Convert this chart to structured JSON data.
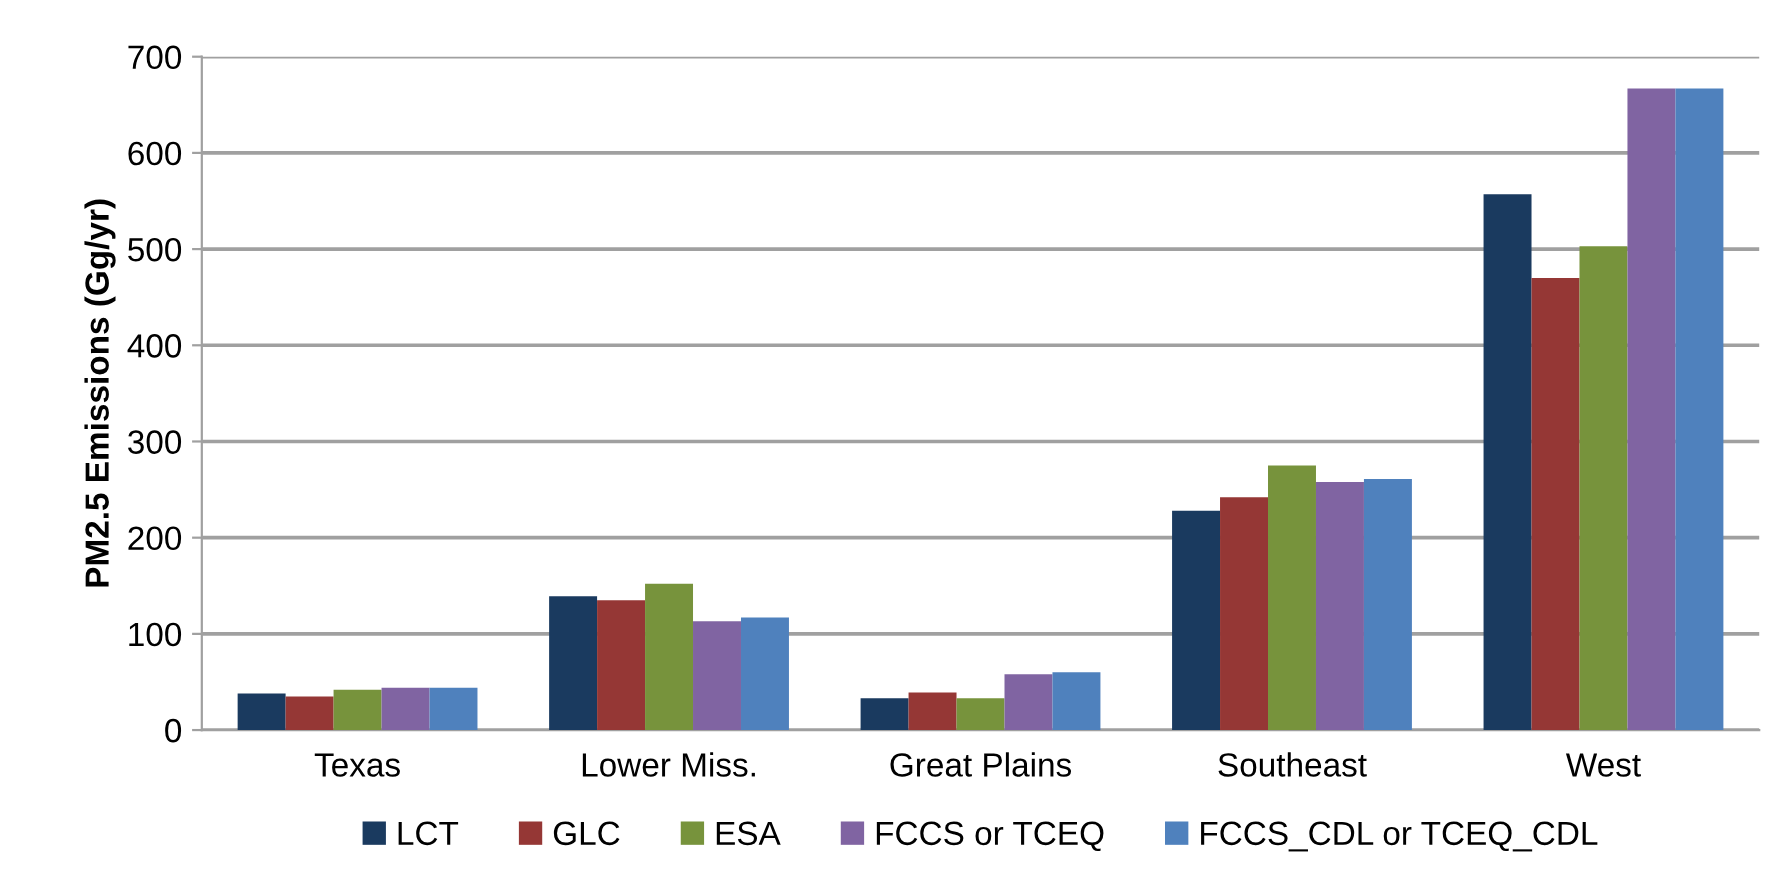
{
  "chart_data": {
    "type": "bar",
    "ylabel": "PM2.5 Emissions (Gg/yr)",
    "categories": [
      "Texas",
      "Lower Miss.",
      "Great Plains",
      "Southeast",
      "West"
    ],
    "series": [
      {
        "name": "LCT",
        "color": "#1a3a5f",
        "values": [
          38,
          139,
          33,
          228,
          557
        ]
      },
      {
        "name": "GLC",
        "color": "#953735",
        "values": [
          35,
          135,
          39,
          242,
          470
        ]
      },
      {
        "name": "ESA",
        "color": "#77933c",
        "values": [
          42,
          152,
          33,
          275,
          503
        ]
      },
      {
        "name": "FCCS or TCEQ",
        "color": "#8064a2",
        "values": [
          44,
          113,
          58,
          258,
          667
        ]
      },
      {
        "name": "FCCS_CDL or TCEQ_CDL",
        "color": "#4f81bd",
        "values": [
          44,
          117,
          60,
          261,
          667
        ]
      }
    ],
    "ylim": [
      0,
      700
    ],
    "yticks": [
      0,
      100,
      200,
      300,
      400,
      500,
      600,
      700
    ],
    "grid": "y",
    "legend": "bottom"
  }
}
